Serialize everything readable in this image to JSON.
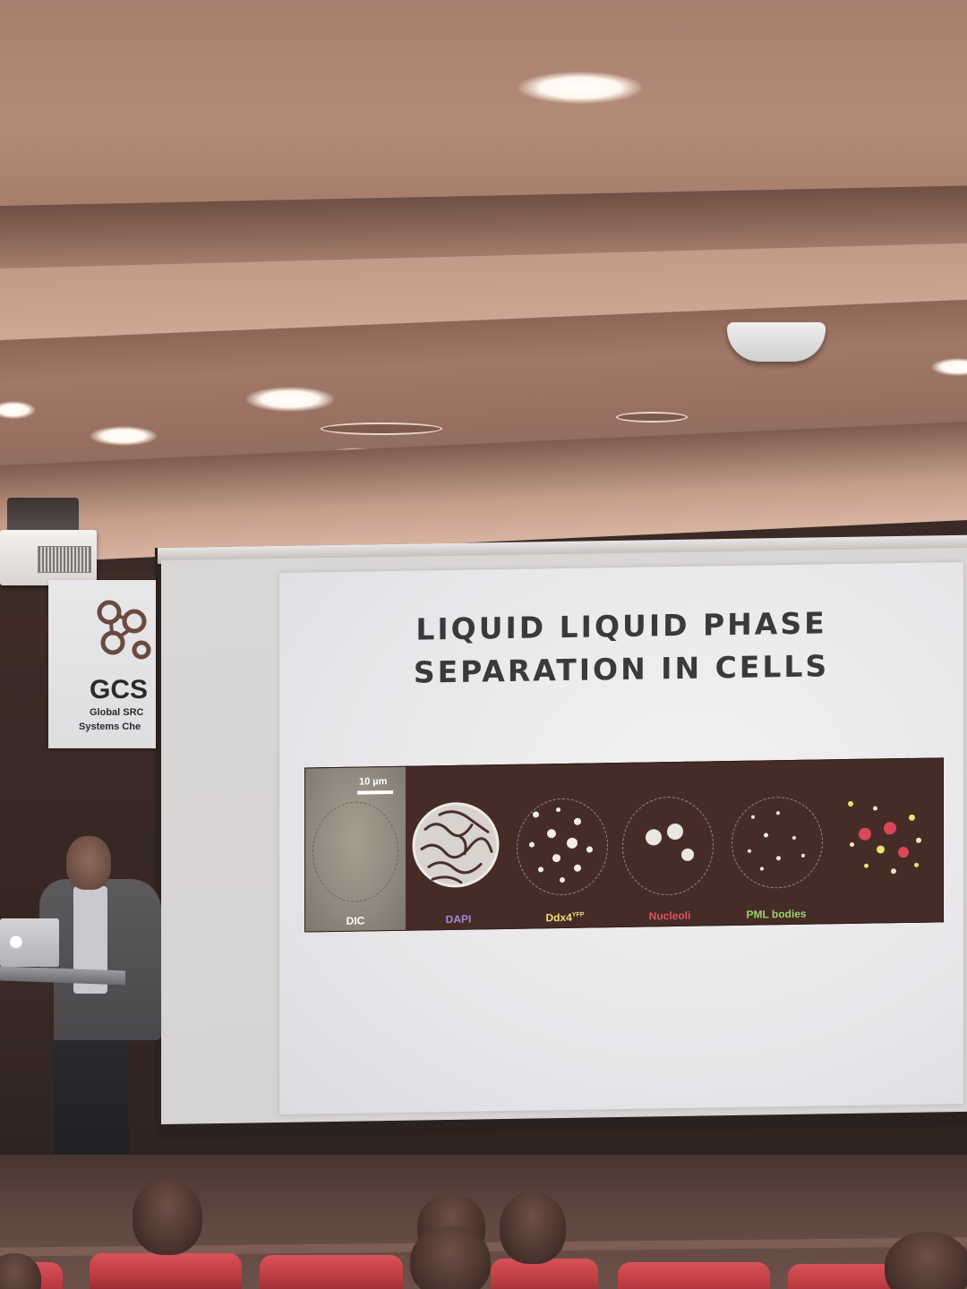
{
  "slide": {
    "title_line1": "LIQUID LIQUID PHASE",
    "title_line2": "SEPARATION IN CELLS",
    "scale_bar": "10 µm",
    "panels": [
      {
        "label": "DIC",
        "color": "#ffffff"
      },
      {
        "label": "DAPI",
        "color": "#a48bd8"
      },
      {
        "label": "Ddx4",
        "superscript": "YFP",
        "color": "#f0e070"
      },
      {
        "label": "Nucleoli",
        "color": "#e05060"
      },
      {
        "label": "PML bodies",
        "color": "#9ad070"
      }
    ]
  },
  "banner": {
    "name": "GCS",
    "line1": "Global SRC",
    "line2": "Systems Che"
  },
  "colors": {
    "slide_text": "#3a3a3c",
    "figure_background": "#462c27",
    "seat_red": "#c8434a",
    "wall": "#3a2a26"
  }
}
